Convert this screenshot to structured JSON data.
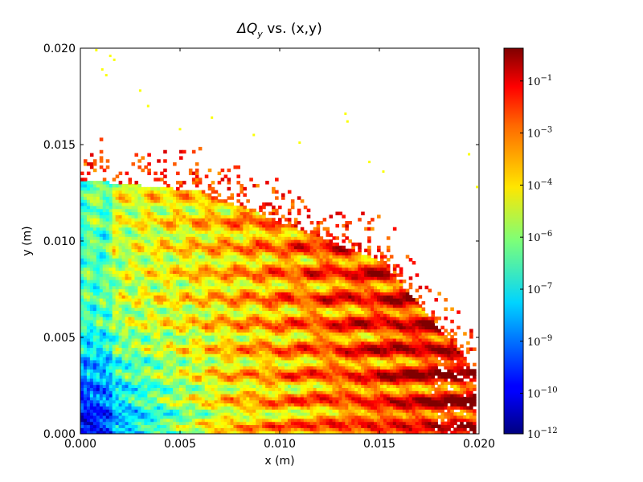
{
  "chart_data": {
    "type": "heatmap",
    "title_math": "ΔQ",
    "title_sub": "y",
    "title_rest": " vs. (x,y)",
    "xlabel": "x (m)",
    "ylabel": "y (m)",
    "xlim": [
      0.0,
      0.02
    ],
    "ylim": [
      0.0,
      0.02
    ],
    "x_ticks": [
      "0.000",
      "0.005",
      "0.010",
      "0.015",
      "0.020"
    ],
    "y_ticks": [
      "0.000",
      "0.005",
      "0.010",
      "0.015",
      "0.020"
    ],
    "x_tick_values": [
      0.0,
      0.005,
      0.01,
      0.015,
      0.02
    ],
    "y_tick_values": [
      0.0,
      0.005,
      0.01,
      0.015,
      0.02
    ],
    "colormap": "jet",
    "colorbar_scale": "log",
    "colorbar_ticks": [
      {
        "base": "10",
        "exp": "−1"
      },
      {
        "base": "10",
        "exp": "−3"
      },
      {
        "base": "10",
        "exp": "−4"
      },
      {
        "base": "10",
        "exp": "−6"
      },
      {
        "base": "10",
        "exp": "−7"
      },
      {
        "base": "10",
        "exp": "−9"
      },
      {
        "base": "10",
        "exp": "−10"
      },
      {
        "base": "10",
        "exp": "−12"
      }
    ],
    "colorbar_tick_fractions": [
      0.915,
      0.78,
      0.645,
      0.51,
      0.375,
      0.24,
      0.105,
      0.0
    ],
    "outlier_points": [
      {
        "x": 0.0008,
        "y": 0.0199,
        "v": 0.62
      },
      {
        "x": 0.0011,
        "y": 0.0189,
        "v": 0.62
      },
      {
        "x": 0.0013,
        "y": 0.0186,
        "v": 0.62
      },
      {
        "x": 0.0015,
        "y": 0.0196,
        "v": 0.62
      },
      {
        "x": 0.0017,
        "y": 0.0194,
        "v": 0.62
      },
      {
        "x": 0.003,
        "y": 0.0178,
        "v": 0.62
      },
      {
        "x": 0.0034,
        "y": 0.017,
        "v": 0.62
      },
      {
        "x": 0.005,
        "y": 0.0158,
        "v": 0.62
      },
      {
        "x": 0.0066,
        "y": 0.0164,
        "v": 0.62
      },
      {
        "x": 0.0087,
        "y": 0.0155,
        "v": 0.62
      },
      {
        "x": 0.011,
        "y": 0.0151,
        "v": 0.62
      },
      {
        "x": 0.0133,
        "y": 0.0166,
        "v": 0.62
      },
      {
        "x": 0.0134,
        "y": 0.0162,
        "v": 0.62
      },
      {
        "x": 0.0145,
        "y": 0.0141,
        "v": 0.62
      },
      {
        "x": 0.0152,
        "y": 0.0136,
        "v": 0.62
      },
      {
        "x": 0.0195,
        "y": 0.0145,
        "v": 0.62
      },
      {
        "x": 0.0199,
        "y": 0.0128,
        "v": 0.62
      }
    ]
  }
}
